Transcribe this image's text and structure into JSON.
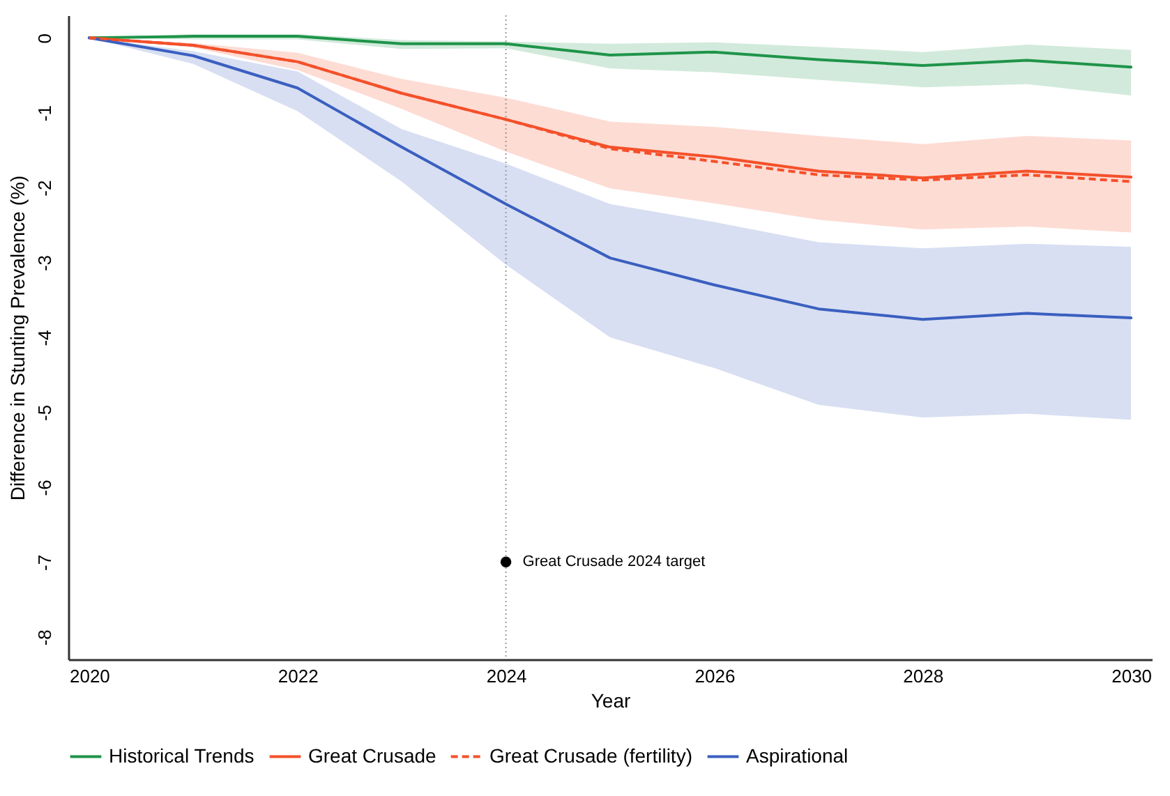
{
  "chart_data": {
    "type": "line",
    "xlabel": "Year",
    "ylabel": "Difference in Stunting Prevalence (%)",
    "x": [
      2020,
      2021,
      2022,
      2023,
      2024,
      2025,
      2026,
      2027,
      2028,
      2029,
      2030
    ],
    "xlim": [
      2019.8,
      2030.2
    ],
    "xticks": [
      2020,
      2022,
      2024,
      2026,
      2028,
      2030
    ],
    "ylim": [
      -8.3,
      0.3
    ],
    "yticks": [
      0,
      -1,
      -2,
      -3,
      -4,
      -5,
      -6,
      -7,
      -8
    ],
    "legend": "bottom",
    "series": [
      {
        "name": "Historical Trends",
        "color": "#1e9449",
        "values": [
          0,
          0.02,
          0.02,
          -0.08,
          -0.08,
          -0.23,
          -0.19,
          -0.29,
          -0.37,
          -0.3,
          -0.39
        ],
        "lower": [
          0,
          -0.02,
          -0.02,
          -0.15,
          -0.14,
          -0.41,
          -0.46,
          -0.56,
          -0.66,
          -0.62,
          -0.77
        ],
        "upper": [
          0,
          0.05,
          0.05,
          -0.03,
          -0.05,
          -0.08,
          -0.06,
          -0.12,
          -0.19,
          -0.09,
          -0.16
        ]
      },
      {
        "name": "Great Crusade",
        "color": "#f4502a",
        "values": [
          0,
          -0.1,
          -0.32,
          -0.74,
          -1.09,
          -1.46,
          -1.59,
          -1.78,
          -1.87,
          -1.78,
          -1.86
        ],
        "lower": [
          0,
          -0.13,
          -0.43,
          -0.95,
          -1.52,
          -2.01,
          -2.21,
          -2.43,
          -2.56,
          -2.52,
          -2.6
        ],
        "upper": [
          0,
          -0.07,
          -0.2,
          -0.55,
          -0.8,
          -1.12,
          -1.19,
          -1.31,
          -1.42,
          -1.31,
          -1.37
        ]
      },
      {
        "name": "Great Crusade (fertility)",
        "color": "#f4502a",
        "line_style": "dashed",
        "values": [
          0,
          -0.1,
          -0.32,
          -0.74,
          -1.09,
          -1.48,
          -1.65,
          -1.83,
          -1.9,
          -1.83,
          -1.92
        ]
      },
      {
        "name": "Aspirational",
        "color": "#3a5fc0",
        "values": [
          0,
          -0.24,
          -0.67,
          -1.46,
          -2.22,
          -2.94,
          -3.3,
          -3.62,
          -3.76,
          -3.68,
          -3.74
        ],
        "lower": [
          0,
          -0.35,
          -0.98,
          -1.92,
          -3.03,
          -4.0,
          -4.41,
          -4.9,
          -5.07,
          -5.02,
          -5.1
        ],
        "upper": [
          0,
          -0.18,
          -0.45,
          -1.22,
          -1.68,
          -2.22,
          -2.46,
          -2.73,
          -2.81,
          -2.75,
          -2.79
        ]
      },
      {
        "type": "scatter",
        "marker": "circle",
        "color": "#000000",
        "x": [
          2024
        ],
        "values": [
          -7
        ]
      }
    ],
    "ref_lines": [
      {
        "axis": "x",
        "value": 2024,
        "color": "#999999",
        "line_style": "dotted"
      }
    ],
    "annotations": [
      {
        "text": "Great Crusade 2024 target",
        "x": 2024,
        "y": -7
      }
    ]
  }
}
